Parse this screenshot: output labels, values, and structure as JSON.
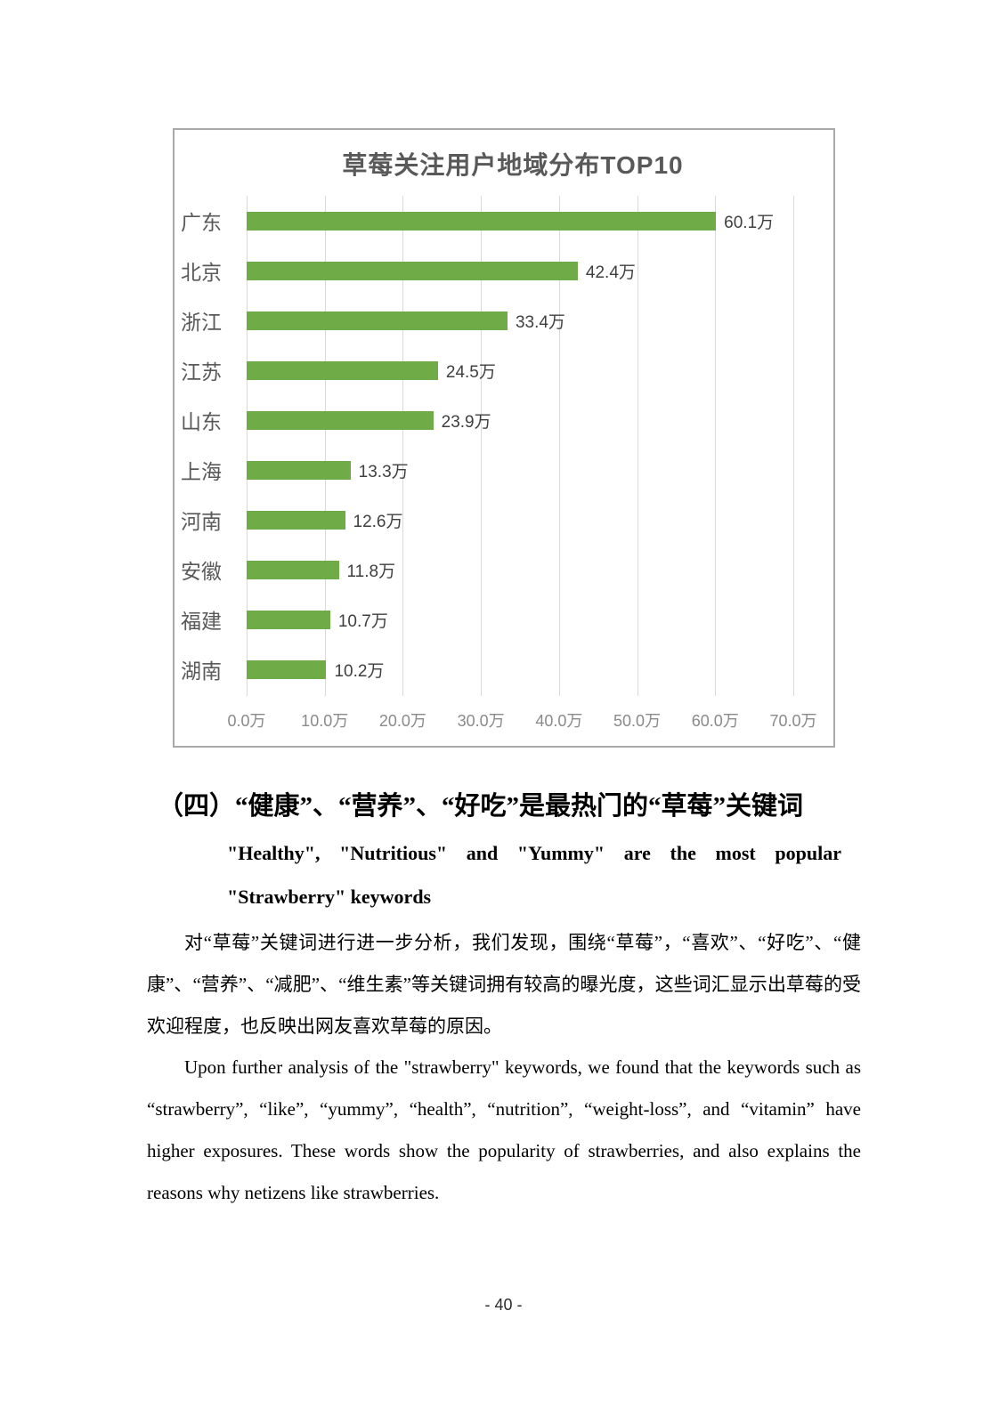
{
  "chart_data": {
    "type": "bar",
    "orientation": "horizontal",
    "title": "草莓关注用户地域分布TOP10",
    "categories": [
      "广东",
      "北京",
      "浙江",
      "江苏",
      "山东",
      "上海",
      "河南",
      "安徽",
      "福建",
      "湖南"
    ],
    "values": [
      60.1,
      42.4,
      33.4,
      24.5,
      23.9,
      13.3,
      12.6,
      11.8,
      10.7,
      10.2
    ],
    "value_labels": [
      "60.1万",
      "42.4万",
      "33.4万",
      "24.5万",
      "23.9万",
      "13.3万",
      "12.6万",
      "11.8万",
      "10.7万",
      "10.2万"
    ],
    "unit": "万",
    "xlabel": "",
    "ylabel": "",
    "xlim": [
      0,
      70
    ],
    "x_ticks": [
      "0.0万",
      "10.0万",
      "20.0万",
      "30.0万",
      "40.0万",
      "50.0万",
      "60.0万",
      "70.0万"
    ],
    "grid": true,
    "legend": "none",
    "bar_color": "#6fac47",
    "gridline_color": "#d9d9d9",
    "title_color": "#595959"
  },
  "section": {
    "heading_zh": "（四）“健康”、“营养”、“好吃”是最热门的“草莓”关键词",
    "heading_en": "\"Healthy\", \"Nutritious\" and \"Yummy\" are the most popular \"Strawberry\" keywords",
    "paragraph_zh": "对“草莓”关键词进行进一步分析，我们发现，围绕“草莓”，“喜欢”、“好吃”、“健康”、“营养”、“减肥”、“维生素”等关键词拥有较高的曝光度，这些词汇显示出草莓的受欢迎程度，也反映出网友喜欢草莓的原因。",
    "paragraph_en": "Upon further analysis of the \"strawberry\" keywords, we found that the keywords such as “strawberry”, “like”, “yummy”, “health”, “nutrition”, “weight-loss”, and “vitamin” have higher exposures. These words show the popularity of strawberries, and also explains the reasons why netizens like strawberries."
  },
  "footer": {
    "page_number": "- 40 -"
  }
}
